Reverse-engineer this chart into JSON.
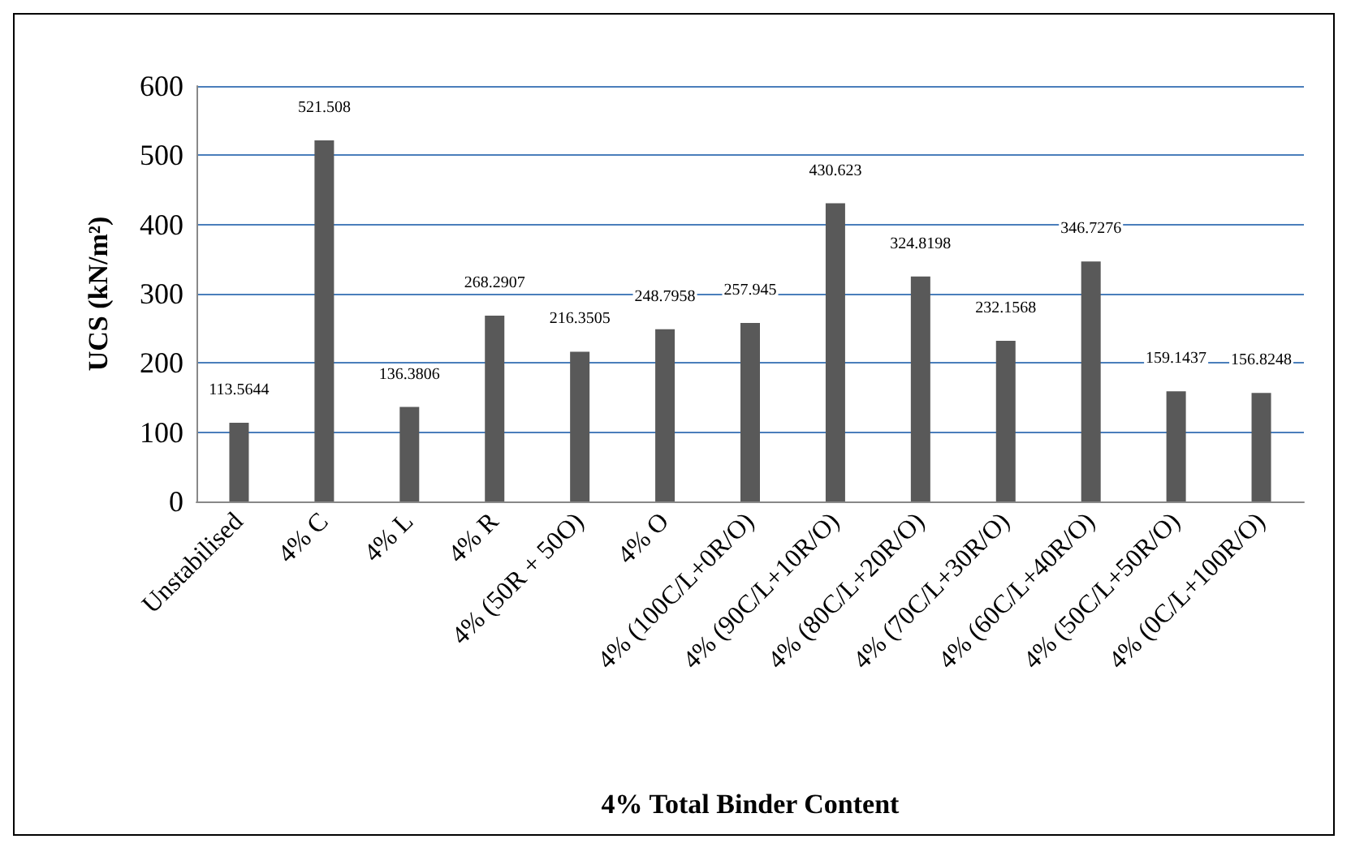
{
  "chart_data": {
    "type": "bar",
    "xlabel": "4% Total Binder Content",
    "ylabel": "UCS (kN/m²)",
    "categories": [
      "Unstabilised",
      "4% C",
      "4% L",
      "4% R",
      "4% (50R + 50O)",
      "4% O",
      "4% (100C/L+0R/O)",
      "4% (90C/L+10R/O)",
      "4% (80C/L+20R/O)",
      "4% (70C/L+30R/O)",
      "4% (60C/L+40R/O)",
      "4% (50C/L+50R/O)",
      "4% (0C/L+100R/O)"
    ],
    "values": [
      113.5644,
      521.508,
      136.3806,
      268.2907,
      216.3505,
      248.7958,
      257.945,
      430.623,
      324.8198,
      232.1568,
      346.7276,
      159.1437,
      156.8248
    ],
    "color": "#595959",
    "ylim": [
      0,
      600
    ],
    "yticks": [
      0,
      100,
      200,
      300,
      400,
      500,
      600
    ],
    "grid": "y",
    "data_labels": true
  }
}
